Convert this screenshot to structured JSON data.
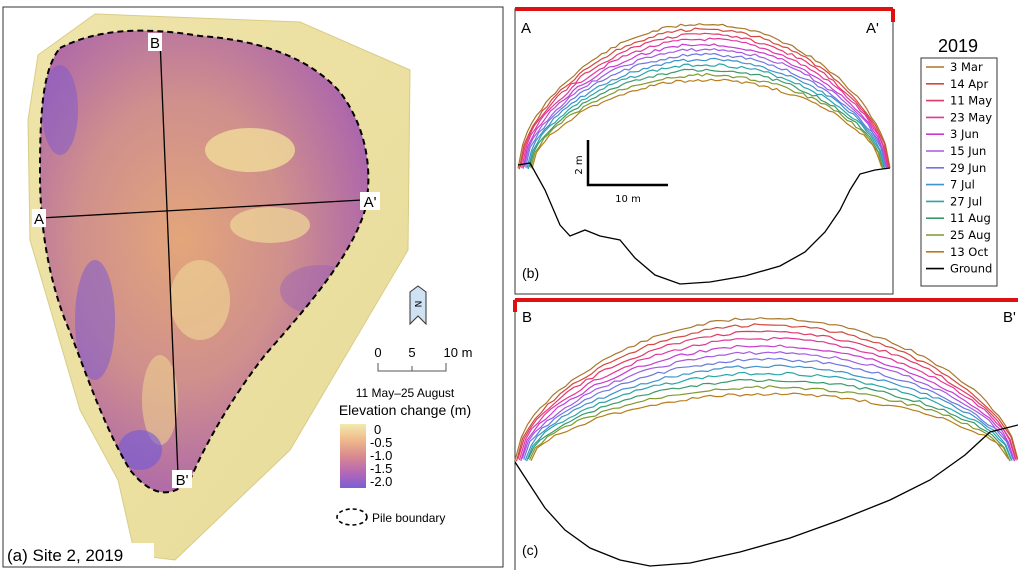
{
  "panel_a": {
    "caption": "(a) Site 2, 2019",
    "point_labels": {
      "A": "A",
      "A_prime": "A'",
      "B": "B",
      "B_prime": "B'"
    },
    "north_label": "N",
    "scale_ticks": [
      "0",
      "5",
      "10 m"
    ],
    "legend": {
      "period": "11 May–25 August",
      "title": "Elevation change (m)",
      "values": [
        "0",
        "-0.5",
        "-1.0",
        "-1.5",
        "-2.0"
      ],
      "colors": [
        "#f3eab0",
        "#efb98a",
        "#d98a8f",
        "#b768b4",
        "#7a5ed6"
      ]
    },
    "boundary_label": "Pile boundary"
  },
  "panel_b": {
    "label": "(b)",
    "left_end": "A",
    "right_end": "A'",
    "scale_vertical": "2 m",
    "scale_horizontal": "10 m"
  },
  "panel_c": {
    "label": "(c)",
    "left_end": "B",
    "right_end": "B'"
  },
  "legend": {
    "year": "2019",
    "entries": [
      {
        "label": "3 Mar",
        "color": "#a8772a"
      },
      {
        "label": "14 Apr",
        "color": "#d2493e"
      },
      {
        "label": "11 May",
        "color": "#e03a6a"
      },
      {
        "label": "23 May",
        "color": "#e0389c"
      },
      {
        "label": "3 Jun",
        "color": "#c93ad0"
      },
      {
        "label": "15 Jun",
        "color": "#a35ae0"
      },
      {
        "label": "29 Jun",
        "color": "#6d78df"
      },
      {
        "label": "7 Jul",
        "color": "#3f93cc"
      },
      {
        "label": "27 Jul",
        "color": "#2aa5a7"
      },
      {
        "label": "11 Aug",
        "color": "#3b9a6a"
      },
      {
        "label": "25 Aug",
        "color": "#7f9a2d"
      },
      {
        "label": "13 Oct",
        "color": "#b77d1c"
      },
      {
        "label": "Ground",
        "color": "#000000"
      }
    ]
  }
}
